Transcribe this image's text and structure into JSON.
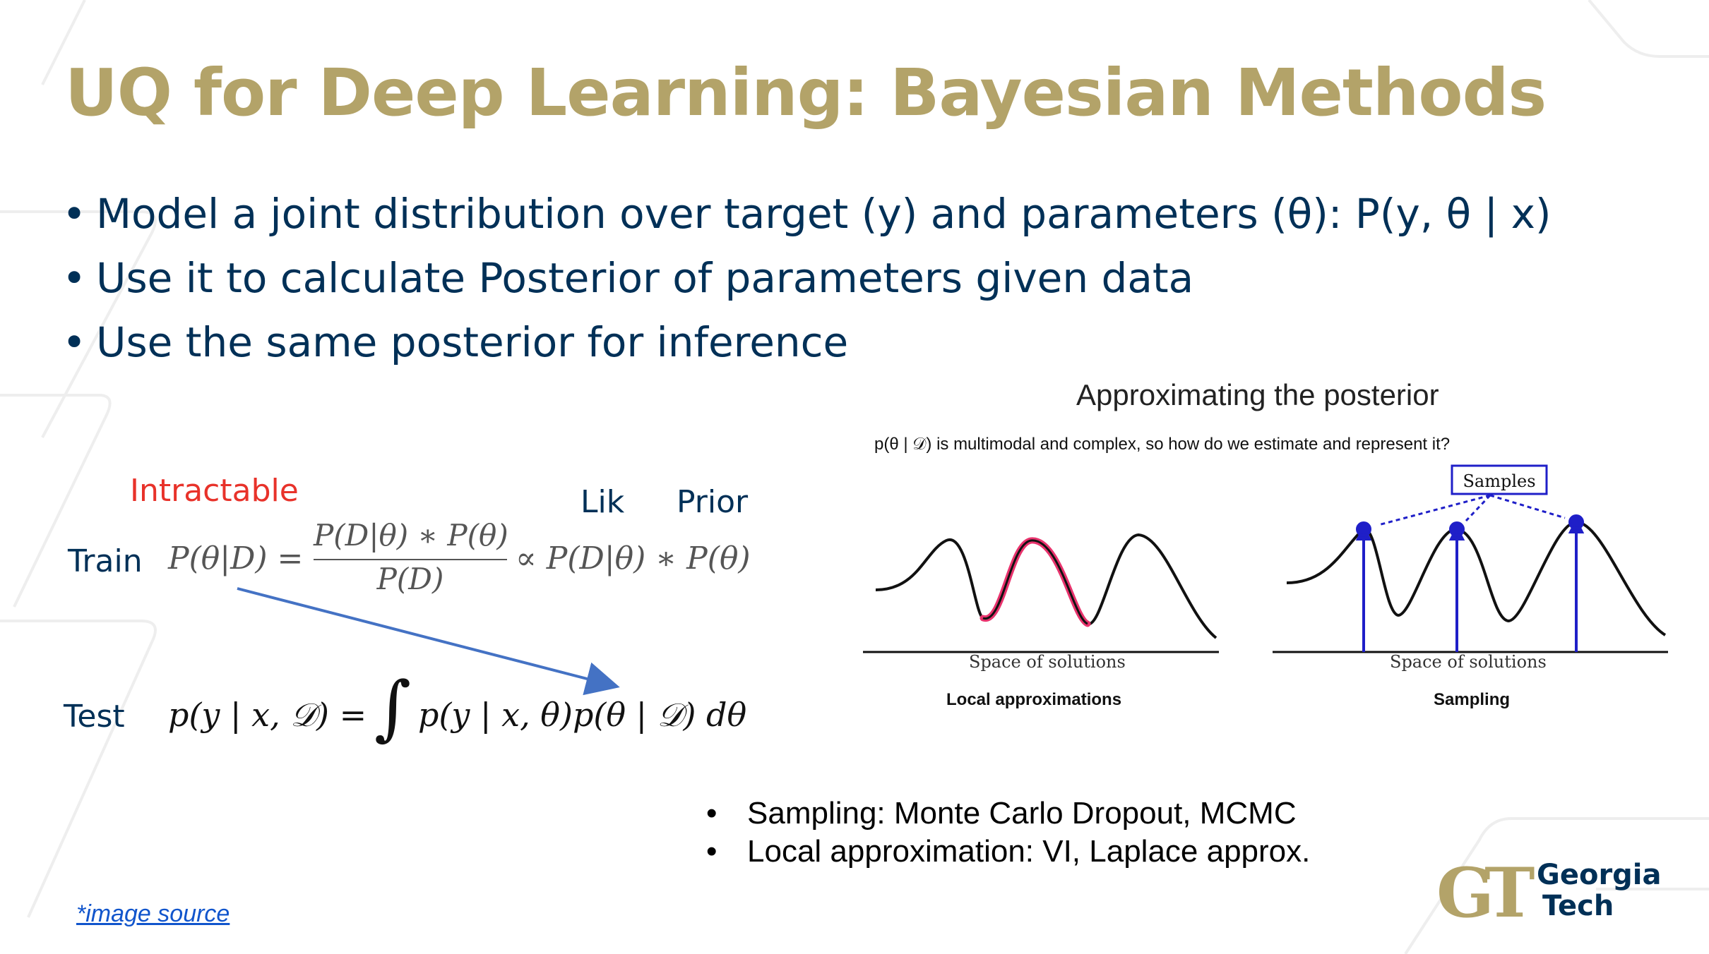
{
  "slide": {
    "title": "UQ for Deep Learning: Bayesian Methods",
    "bullets": [
      "Model a joint distribution over target (y) and parameters (θ): P(y, θ | x)",
      "Use it to calculate Posterior of parameters given data",
      "Use the same posterior for inference"
    ]
  },
  "equations": {
    "intractable_label": "Intractable",
    "lik_label": "Lik",
    "prior_label": "Prior",
    "train_label": "Train",
    "test_label": "Test",
    "train_lhs": "P(θ|D) =",
    "train_numerator": "P(D|θ) ∗ P(θ)",
    "train_denominator": "P(D)",
    "train_rhs": "∝ P(D|θ) ∗ P(θ)",
    "test_lhs": "p(y | x, 𝒟) =",
    "test_integral": "∫",
    "test_rhs": "p(y | x, θ)p(θ | 𝒟) dθ"
  },
  "figure": {
    "title": "Approximating the posterior",
    "question": "p(θ | 𝒟) is multimodal and complex, so how do we estimate and represent it?",
    "samples_label": "Samples",
    "left_axis_label": "Space of solutions",
    "right_axis_label": "Space of solutions",
    "left_caption": "Local approximations",
    "right_caption": "Sampling",
    "highlight_color": "#e8336d",
    "sample_color": "#1f1fc8"
  },
  "bottom_bullets": [
    "Sampling: Monte Carlo Dropout, MCMC",
    "Local approximation: VI, Laplace approx."
  ],
  "footer": {
    "image_source_link": "*image source",
    "logo_mark": "GT",
    "logo_line1": "Georgia",
    "logo_line2": "Tech",
    "logo_color": "#b3a369"
  }
}
